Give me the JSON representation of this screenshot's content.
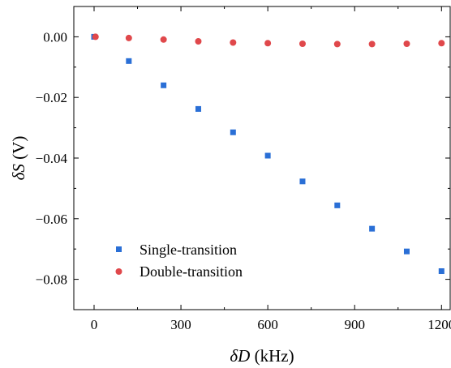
{
  "chart_data": {
    "type": "scatter",
    "title": "",
    "xlabel_symbol": "δD",
    "xlabel_unit": " (kHz)",
    "ylabel_symbol": "δS",
    "ylabel_unit": " (V)",
    "xlim": [
      -70,
      1230
    ],
    "ylim": [
      -0.09,
      0.01
    ],
    "xticks": [
      0,
      300,
      600,
      900,
      1200
    ],
    "xtick_labels": [
      "0",
      "300",
      "600",
      "900",
      "1200"
    ],
    "yticks": [
      0.0,
      -0.02,
      -0.04,
      -0.06,
      -0.08
    ],
    "ytick_labels": [
      "0.00",
      "−0.02",
      "−0.04",
      "−0.06",
      "−0.08"
    ],
    "grid": false,
    "legend_position": "bottom-left",
    "series": [
      {
        "name": "Single-transition",
        "marker": "square",
        "color": "#2a6fd6",
        "x": [
          0,
          120,
          240,
          360,
          480,
          600,
          720,
          840,
          960,
          1080,
          1200
        ],
        "y": [
          0.0,
          -0.008,
          -0.016,
          -0.0238,
          -0.0315,
          -0.0392,
          -0.0477,
          -0.0556,
          -0.0633,
          -0.0708,
          -0.0773
        ]
      },
      {
        "name": "Double-transition",
        "marker": "circle",
        "color": "#e0484b",
        "x": [
          5,
          120,
          240,
          360,
          480,
          600,
          720,
          840,
          960,
          1080,
          1200
        ],
        "y": [
          0.0,
          -0.0004,
          -0.0009,
          -0.0015,
          -0.0019,
          -0.0021,
          -0.0023,
          -0.0024,
          -0.0024,
          -0.0023,
          -0.0021
        ]
      }
    ]
  }
}
